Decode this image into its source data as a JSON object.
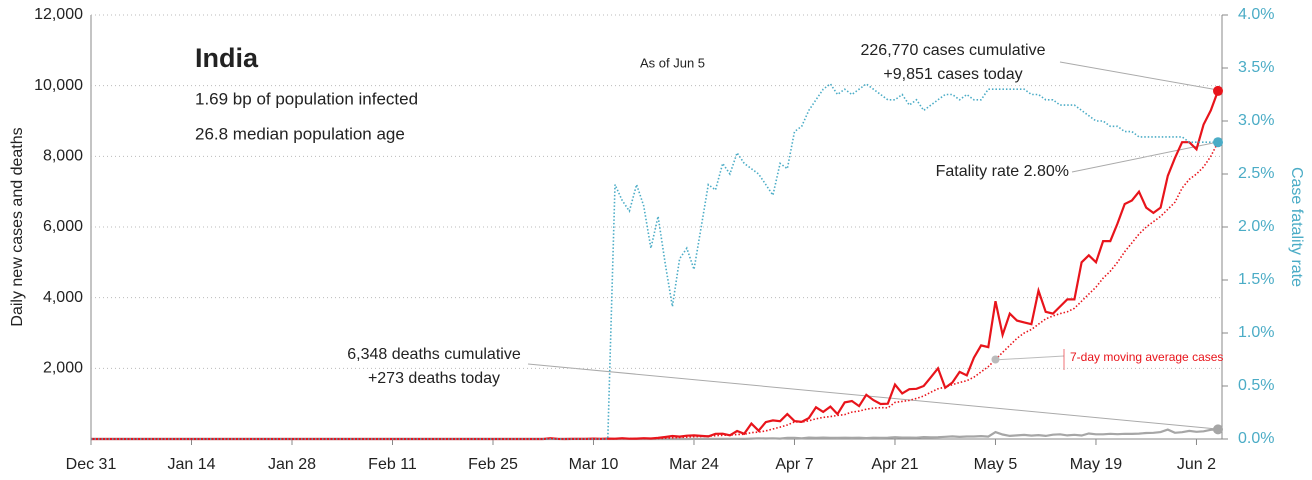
{
  "chart_data": {
    "type": "line",
    "title": "India",
    "subtitle": "As of Jun 5",
    "notes": [
      "1.69 bp of population infected",
      "26.8 median population age"
    ],
    "annotations": [
      "226,770 cases cumulative",
      "+9,851 cases today",
      "Fatality rate 2.80%",
      "6,348 deaths cumulative",
      "+273 deaths today",
      "7-day moving average cases"
    ],
    "y_label": "Daily new cases and deaths",
    "y2_label": "Case fatality rate",
    "x": [
      "Dec 31",
      "Jan 1",
      "Jan 2",
      "Jan 3",
      "Jan 4",
      "Jan 5",
      "Jan 6",
      "Jan 7",
      "Jan 8",
      "Jan 9",
      "Jan 10",
      "Jan 11",
      "Jan 12",
      "Jan 13",
      "Jan 14",
      "Jan 15",
      "Jan 16",
      "Jan 17",
      "Jan 18",
      "Jan 19",
      "Jan 20",
      "Jan 21",
      "Jan 22",
      "Jan 23",
      "Jan 24",
      "Jan 25",
      "Jan 26",
      "Jan 27",
      "Jan 28",
      "Jan 29",
      "Jan 30",
      "Jan 31",
      "Feb 1",
      "Feb 2",
      "Feb 3",
      "Feb 4",
      "Feb 5",
      "Feb 6",
      "Feb 7",
      "Feb 8",
      "Feb 9",
      "Feb 10",
      "Feb 11",
      "Feb 12",
      "Feb 13",
      "Feb 14",
      "Feb 15",
      "Feb 16",
      "Feb 17",
      "Feb 18",
      "Feb 19",
      "Feb 20",
      "Feb 21",
      "Feb 22",
      "Feb 23",
      "Feb 24",
      "Feb 25",
      "Feb 26",
      "Feb 27",
      "Feb 28",
      "Feb 29",
      "Mar 1",
      "Mar 2",
      "Mar 3",
      "Mar 4",
      "Mar 5",
      "Mar 6",
      "Mar 7",
      "Mar 8",
      "Mar 9",
      "Mar 10",
      "Mar 11",
      "Mar 12",
      "Mar 13",
      "Mar 14",
      "Mar 15",
      "Mar 16",
      "Mar 17",
      "Mar 18",
      "Mar 19",
      "Mar 20",
      "Mar 21",
      "Mar 22",
      "Mar 23",
      "Mar 24",
      "Mar 25",
      "Mar 26",
      "Mar 27",
      "Mar 28",
      "Mar 29",
      "Mar 30",
      "Mar 31",
      "Apr 1",
      "Apr 2",
      "Apr 3",
      "Apr 4",
      "Apr 5",
      "Apr 6",
      "Apr 7",
      "Apr 8",
      "Apr 9",
      "Apr 10",
      "Apr 11",
      "Apr 12",
      "Apr 13",
      "Apr 14",
      "Apr 15",
      "Apr 16",
      "Apr 17",
      "Apr 18",
      "Apr 19",
      "Apr 20",
      "Apr 21",
      "Apr 22",
      "Apr 23",
      "Apr 24",
      "Apr 25",
      "Apr 26",
      "Apr 27",
      "Apr 28",
      "Apr 29",
      "Apr 30",
      "May 1",
      "May 2",
      "May 3",
      "May 4",
      "May 5",
      "May 6",
      "May 7",
      "May 8",
      "May 9",
      "May 10",
      "May 11",
      "May 12",
      "May 13",
      "May 14",
      "May 15",
      "May 16",
      "May 17",
      "May 18",
      "May 19",
      "May 20",
      "May 21",
      "May 22",
      "May 23",
      "May 24",
      "May 25",
      "May 26",
      "May 27",
      "May 28",
      "May 29",
      "May 30",
      "May 31",
      "Jun 1",
      "Jun 2",
      "Jun 3",
      "Jun 4",
      "Jun 5"
    ],
    "xticks": [
      "Dec 31",
      "Jan 14",
      "Jan 28",
      "Feb 11",
      "Feb 25",
      "Mar 10",
      "Mar 24",
      "Apr 7",
      "Apr 21",
      "May 5",
      "May 19",
      "Jun 2"
    ],
    "series": [
      {
        "color": "#a6a6a6",
        "style": "solid",
        "values": [
          0,
          0,
          0,
          0,
          0,
          0,
          0,
          0,
          0,
          0,
          0,
          0,
          0,
          0,
          0,
          0,
          0,
          0,
          0,
          0,
          0,
          0,
          0,
          0,
          0,
          0,
          0,
          0,
          0,
          0,
          0,
          0,
          0,
          0,
          0,
          0,
          0,
          0,
          0,
          0,
          0,
          0,
          0,
          0,
          0,
          0,
          0,
          0,
          0,
          0,
          0,
          0,
          0,
          0,
          0,
          0,
          0,
          0,
          0,
          0,
          0,
          0,
          0,
          0,
          0,
          0,
          0,
          0,
          0,
          0,
          0,
          0,
          1,
          0,
          1,
          0,
          0,
          1,
          0,
          1,
          1,
          0,
          2,
          1,
          2,
          3,
          3,
          4,
          3,
          5,
          6,
          4,
          12,
          20,
          15,
          20,
          11,
          30,
          35,
          20,
          40,
          33,
          40,
          35,
          31,
          38,
          30,
          37,
          26,
          36,
          31,
          36,
          50,
          40,
          40,
          37,
          53,
          47,
          50,
          62,
          73,
          60,
          71,
          72,
          83,
          68,
          195,
          126,
          89,
          103,
          116,
          97,
          111,
          87,
          121,
          134,
          101,
          120,
          100,
          157,
          134,
          134,
          148,
          137,
          148,
          143,
          154,
          170,
          175,
          194,
          265,
          175,
          193,
          230,
          204,
          217,
          260,
          273
        ]
      },
      {
        "color": "#e8141b",
        "style": "dotted",
        "values": [
          0,
          0,
          0,
          0,
          0,
          0,
          0,
          0,
          0,
          0,
          0,
          0,
          0,
          0,
          0,
          0,
          0,
          0,
          0,
          0,
          0,
          0,
          0,
          0,
          0,
          0,
          0,
          0,
          0,
          0,
          0,
          0,
          0,
          0,
          0,
          0,
          0,
          0,
          0,
          0,
          0,
          0,
          0,
          0,
          0,
          0,
          0,
          0,
          0,
          0,
          0,
          0,
          0,
          0,
          0,
          0,
          0,
          0,
          0,
          0,
          0,
          0,
          0,
          0,
          3,
          4,
          4,
          4,
          5,
          5,
          7,
          5,
          5,
          6,
          8,
          10,
          10,
          13,
          14,
          17,
          22,
          33,
          42,
          53,
          64,
          72,
          82,
          94,
          104,
          110,
          128,
          134,
          181,
          194,
          230,
          283,
          337,
          396,
          485,
          479,
          515,
          573,
          610,
          634,
          668,
          691,
          761,
          791,
          843,
          871,
          888,
          880,
          1037,
          1063,
          1093,
          1150,
          1218,
          1325,
          1420,
          1470,
          1540,
          1600,
          1650,
          1750,
          1900,
          2050,
          2250,
          2450,
          2650,
          2850,
          3000,
          3100,
          3250,
          3400,
          3480,
          3550,
          3600,
          3700,
          3900,
          4100,
          4300,
          4550,
          4750,
          5000,
          5300,
          5550,
          5800,
          6000,
          6150,
          6300,
          6500,
          6700,
          7100,
          7350,
          7500,
          7700,
          8000,
          8400
        ]
      },
      {
        "color": "#e8141b",
        "style": "solid",
        "values": [
          0,
          0,
          0,
          0,
          0,
          0,
          0,
          0,
          0,
          0,
          0,
          0,
          0,
          0,
          0,
          0,
          0,
          0,
          0,
          0,
          0,
          0,
          0,
          0,
          0,
          0,
          0,
          0,
          0,
          0,
          0,
          0,
          0,
          0,
          0,
          0,
          0,
          0,
          0,
          0,
          0,
          0,
          0,
          0,
          0,
          0,
          0,
          0,
          0,
          0,
          0,
          0,
          0,
          0,
          0,
          0,
          0,
          0,
          0,
          0,
          0,
          0,
          0,
          1,
          22,
          2,
          1,
          3,
          5,
          4,
          12,
          6,
          10,
          8,
          22,
          8,
          12,
          23,
          14,
          31,
          58,
          84,
          67,
          94,
          103,
          87,
          75,
          148,
          149,
          106,
          227,
          146,
          437,
          235,
          478,
          525,
          505,
          704,
          508,
          485,
          591,
          896,
          768,
          918,
          705,
          1035,
          1076,
          932,
          1252,
          1100,
          990,
          1000,
          1540,
          1290,
          1410,
          1420,
          1500,
          1750,
          2000,
          1450,
          1600,
          1900,
          1800,
          2300,
          2650,
          2600,
          3900,
          2950,
          3550,
          3350,
          3300,
          3250,
          4200,
          3600,
          3550,
          3750,
          3950,
          3950,
          5000,
          5200,
          5000,
          5600,
          5600,
          6100,
          6650,
          6750,
          7000,
          6550,
          6400,
          6550,
          7450,
          7950,
          8400,
          8400,
          8200,
          8900,
          9300,
          9851
        ]
      },
      {
        "color": "#4bacc6",
        "style": "dotted",
        "axis": "y2",
        "values": [
          0,
          0,
          0,
          0,
          0,
          0,
          0,
          0,
          0,
          0,
          0,
          0,
          0,
          0,
          0,
          0,
          0,
          0,
          0,
          0,
          0,
          0,
          0,
          0,
          0,
          0,
          0,
          0,
          0,
          0,
          0,
          0,
          0,
          0,
          0,
          0,
          0,
          0,
          0,
          0,
          0,
          0,
          0,
          0,
          0,
          0,
          0,
          0,
          0,
          0,
          0,
          0,
          0,
          0,
          0,
          0,
          0,
          0,
          0,
          0,
          0,
          0,
          0,
          0,
          0,
          0,
          0,
          0,
          0,
          0,
          0,
          0,
          0,
          2.4,
          2.25,
          2.15,
          2.4,
          2.2,
          1.8,
          2.1,
          1.65,
          1.25,
          1.7,
          1.8,
          1.6,
          2.0,
          2.4,
          2.35,
          2.6,
          2.5,
          2.7,
          2.6,
          2.55,
          2.5,
          2.4,
          2.3,
          2.6,
          2.55,
          2.9,
          2.95,
          3.1,
          3.2,
          3.3,
          3.35,
          3.25,
          3.3,
          3.25,
          3.3,
          3.35,
          3.3,
          3.25,
          3.2,
          3.2,
          3.25,
          3.15,
          3.2,
          3.1,
          3.15,
          3.2,
          3.25,
          3.25,
          3.2,
          3.25,
          3.2,
          3.2,
          3.3,
          3.3,
          3.3,
          3.3,
          3.3,
          3.3,
          3.25,
          3.25,
          3.2,
          3.2,
          3.15,
          3.15,
          3.15,
          3.1,
          3.05,
          3.0,
          3.0,
          2.95,
          2.95,
          2.9,
          2.9,
          2.85,
          2.85,
          2.85,
          2.85,
          2.85,
          2.85,
          2.85,
          2.8,
          2.8,
          2.8,
          2.8,
          2.8
        ]
      }
    ],
    "ylim": [
      0,
      12000
    ],
    "yticks": [
      {
        "value": 2000,
        "label": "2,000"
      },
      {
        "value": 4000,
        "label": "4,000"
      },
      {
        "value": 6000,
        "label": "6,000"
      },
      {
        "value": 8000,
        "label": "8,000"
      },
      {
        "value": 10000,
        "label": "10,000"
      },
      {
        "value": 12000,
        "label": "12,000"
      }
    ],
    "y2lim": [
      0,
      4
    ],
    "y2ticks": [
      {
        "value": 0,
        "label": "0.0%"
      },
      {
        "value": 0.5,
        "label": "0.5%"
      },
      {
        "value": 1,
        "label": "1.0%"
      },
      {
        "value": 1.5,
        "label": "1.5%"
      },
      {
        "value": 2,
        "label": "2.0%"
      },
      {
        "value": 2.5,
        "label": "2.5%"
      },
      {
        "value": 3,
        "label": "3.0%"
      },
      {
        "value": 3.5,
        "label": "3.5%"
      },
      {
        "value": 4,
        "label": "4.0%"
      }
    ],
    "grid": true
  }
}
